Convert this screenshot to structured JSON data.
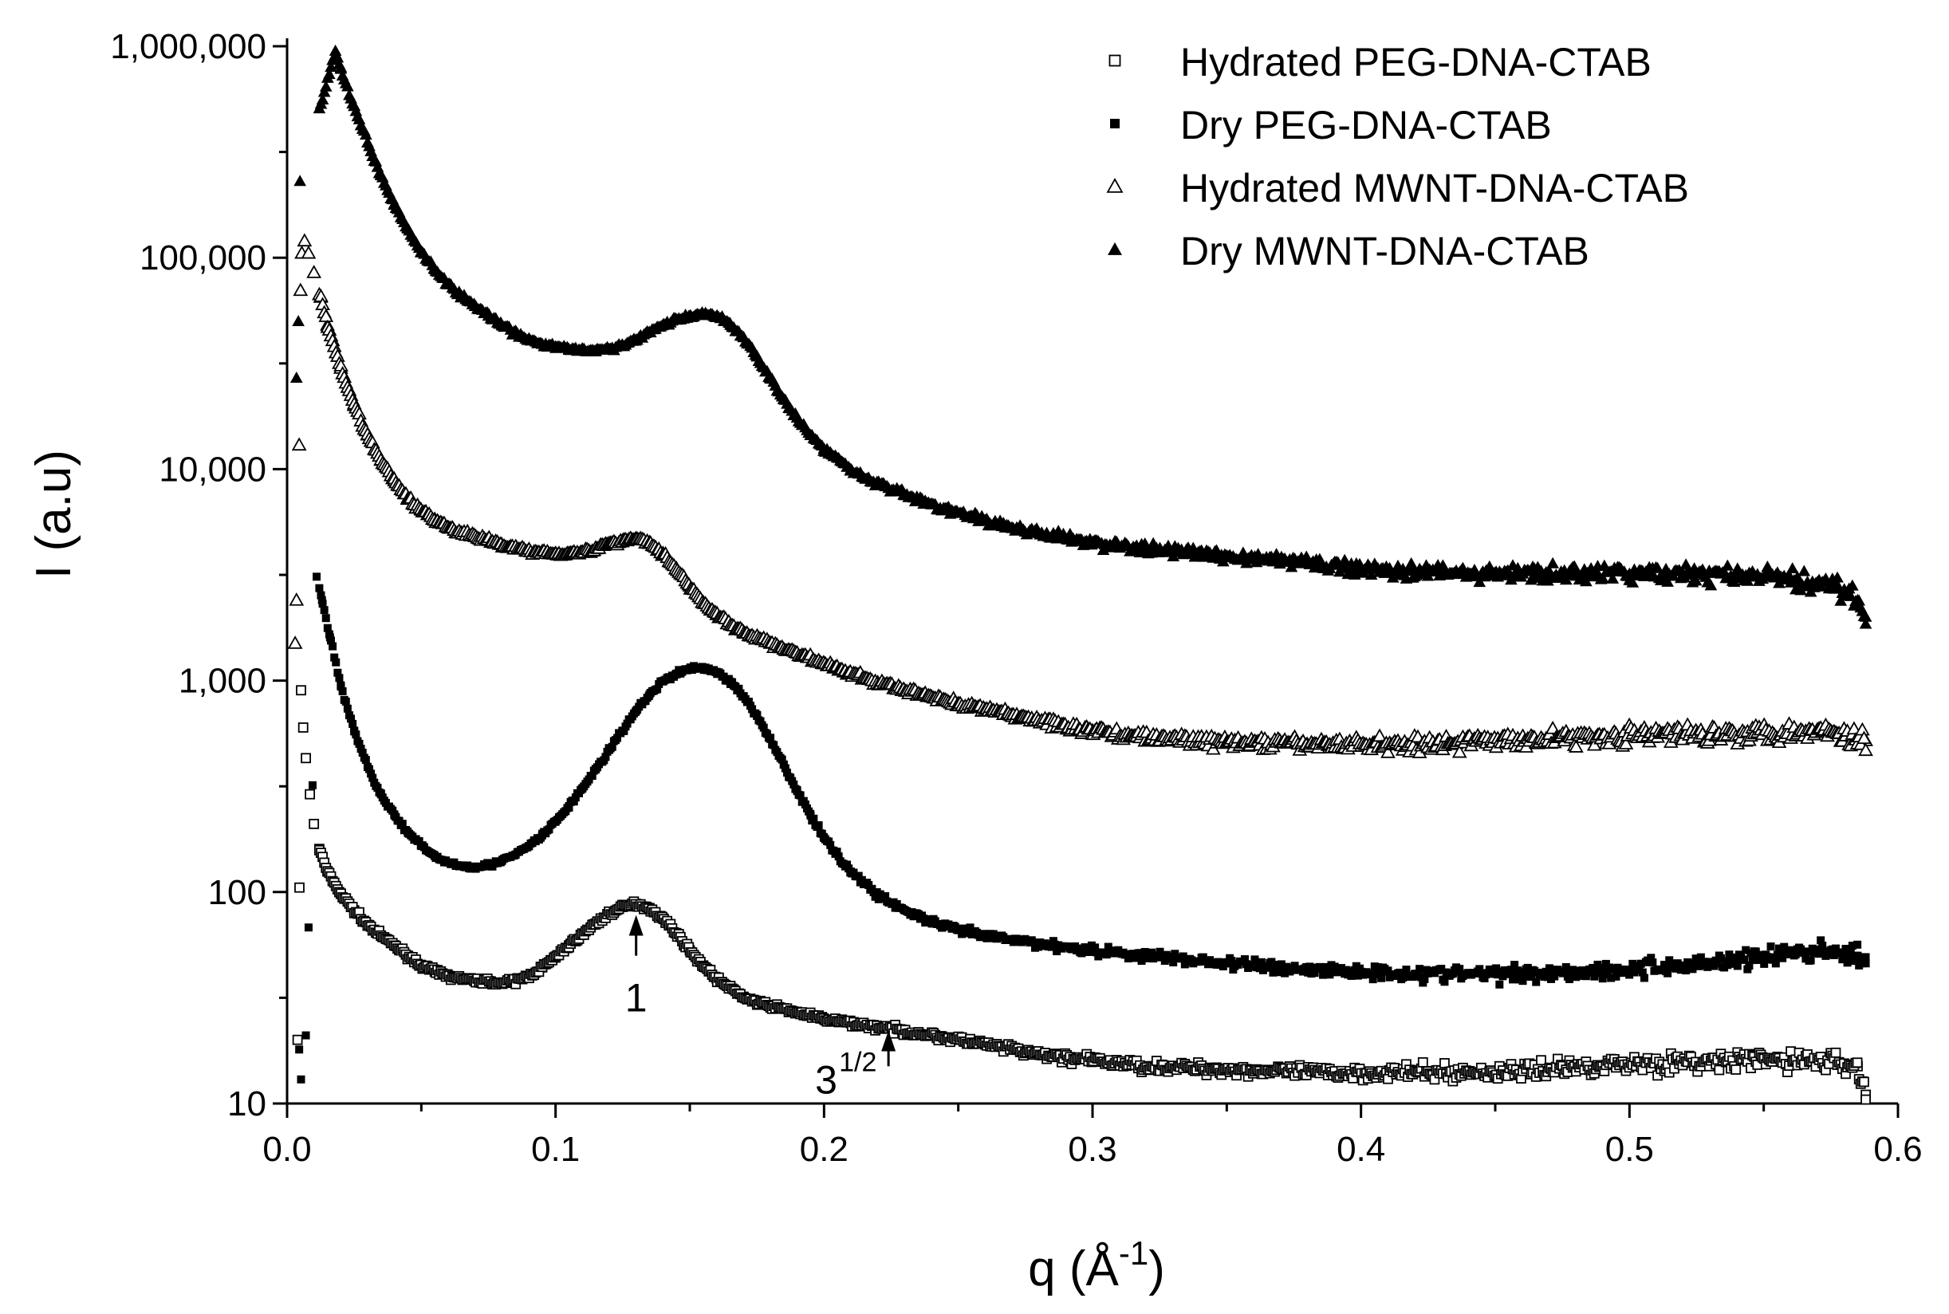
{
  "chart_data": {
    "type": "scatter",
    "title": "",
    "xlabel": "q (Å⁻¹)",
    "xlabel_parts": {
      "main": "q (Å",
      "sup": "-1",
      "close": ")"
    },
    "ylabel": "I (a.u)",
    "xscale": "linear",
    "yscale": "log",
    "xlim": [
      0.0,
      0.6
    ],
    "ylim": [
      10,
      1000000
    ],
    "x_ticks": [
      0.0,
      0.1,
      0.2,
      0.3,
      0.4,
      0.5,
      0.6
    ],
    "x_tick_labels": [
      "0.0",
      "0.1",
      "0.2",
      "0.3",
      "0.4",
      "0.5",
      "0.6"
    ],
    "y_ticks": [
      10,
      100,
      1000,
      10000,
      100000,
      1000000
    ],
    "y_tick_labels": [
      "10",
      "100",
      "1,000",
      "10,000",
      "100,000",
      "1,000,000"
    ],
    "grid": false,
    "legend_position": "top-right",
    "series": [
      {
        "name": "Hydrated PEG-DNA-CTAB",
        "marker": "square-open",
        "points": [
          [
            0.0039,
            20
          ],
          [
            0.0046,
            105
          ],
          [
            0.0052,
            900
          ],
          [
            0.006,
            600
          ],
          [
            0.007,
            430
          ],
          [
            0.0085,
            290
          ],
          [
            0.01,
            210
          ],
          [
            0.012,
            160
          ],
          [
            0.015,
            125
          ],
          [
            0.02,
            98
          ],
          [
            0.025,
            82
          ],
          [
            0.03,
            70
          ],
          [
            0.035,
            62
          ],
          [
            0.04,
            56
          ],
          [
            0.045,
            50
          ],
          [
            0.05,
            45
          ],
          [
            0.055,
            42
          ],
          [
            0.06,
            40
          ],
          [
            0.065,
            39
          ],
          [
            0.07,
            38
          ],
          [
            0.075,
            38
          ],
          [
            0.08,
            37
          ],
          [
            0.085,
            38
          ],
          [
            0.09,
            40
          ],
          [
            0.095,
            44
          ],
          [
            0.1,
            49
          ],
          [
            0.105,
            56
          ],
          [
            0.11,
            63
          ],
          [
            0.115,
            71
          ],
          [
            0.12,
            79
          ],
          [
            0.125,
            85
          ],
          [
            0.13,
            88
          ],
          [
            0.135,
            84
          ],
          [
            0.14,
            75
          ],
          [
            0.145,
            64
          ],
          [
            0.15,
            53
          ],
          [
            0.155,
            45
          ],
          [
            0.16,
            39
          ],
          [
            0.165,
            35
          ],
          [
            0.17,
            32
          ],
          [
            0.175,
            30
          ],
          [
            0.18,
            29
          ],
          [
            0.19,
            27
          ],
          [
            0.2,
            25
          ],
          [
            0.21,
            24
          ],
          [
            0.22,
            23
          ],
          [
            0.23,
            22
          ],
          [
            0.24,
            21
          ],
          [
            0.25,
            20
          ],
          [
            0.26,
            19
          ],
          [
            0.27,
            18
          ],
          [
            0.28,
            17
          ],
          [
            0.3,
            16
          ],
          [
            0.32,
            15
          ],
          [
            0.35,
            14.5
          ],
          [
            0.38,
            14
          ],
          [
            0.4,
            14
          ],
          [
            0.45,
            14
          ],
          [
            0.5,
            15.5
          ],
          [
            0.52,
            15.5
          ],
          [
            0.55,
            16
          ],
          [
            0.57,
            16
          ],
          [
            0.585,
            15
          ],
          [
            0.588,
            11
          ]
        ]
      },
      {
        "name": "Dry PEG-DNA-CTAB",
        "marker": "square-filled",
        "points": [
          [
            0.0045,
            18
          ],
          [
            0.0052,
            13
          ],
          [
            0.007,
            21
          ],
          [
            0.008,
            68
          ],
          [
            0.0095,
            320
          ],
          [
            0.011,
            3100
          ],
          [
            0.013,
            2400
          ],
          [
            0.016,
            1600
          ],
          [
            0.02,
            950
          ],
          [
            0.025,
            580
          ],
          [
            0.03,
            390
          ],
          [
            0.035,
            290
          ],
          [
            0.04,
            230
          ],
          [
            0.045,
            190
          ],
          [
            0.05,
            165
          ],
          [
            0.055,
            148
          ],
          [
            0.06,
            138
          ],
          [
            0.065,
            133
          ],
          [
            0.07,
            132
          ],
          [
            0.075,
            134
          ],
          [
            0.08,
            140
          ],
          [
            0.085,
            150
          ],
          [
            0.09,
            165
          ],
          [
            0.095,
            185
          ],
          [
            0.1,
            215
          ],
          [
            0.105,
            255
          ],
          [
            0.11,
            310
          ],
          [
            0.115,
            380
          ],
          [
            0.12,
            470
          ],
          [
            0.125,
            580
          ],
          [
            0.13,
            720
          ],
          [
            0.135,
            860
          ],
          [
            0.14,
            990
          ],
          [
            0.145,
            1080
          ],
          [
            0.15,
            1140
          ],
          [
            0.155,
            1150
          ],
          [
            0.16,
            1100
          ],
          [
            0.165,
            990
          ],
          [
            0.17,
            840
          ],
          [
            0.175,
            680
          ],
          [
            0.18,
            530
          ],
          [
            0.185,
            400
          ],
          [
            0.19,
            300
          ],
          [
            0.195,
            230
          ],
          [
            0.2,
            180
          ],
          [
            0.21,
            125
          ],
          [
            0.22,
            97
          ],
          [
            0.23,
            82
          ],
          [
            0.24,
            72
          ],
          [
            0.25,
            66
          ],
          [
            0.26,
            62
          ],
          [
            0.28,
            57
          ],
          [
            0.3,
            53
          ],
          [
            0.32,
            50
          ],
          [
            0.35,
            46
          ],
          [
            0.38,
            43
          ],
          [
            0.4,
            42
          ],
          [
            0.42,
            41
          ],
          [
            0.45,
            41
          ],
          [
            0.48,
            42
          ],
          [
            0.5,
            43
          ],
          [
            0.52,
            45
          ],
          [
            0.54,
            48
          ],
          [
            0.56,
            51
          ],
          [
            0.575,
            53
          ],
          [
            0.585,
            50
          ],
          [
            0.588,
            46
          ]
        ]
      },
      {
        "name": "Hydrated MWNT-DNA-CTAB",
        "marker": "triangle-open",
        "points": [
          [
            0.003,
            1500
          ],
          [
            0.0035,
            2400
          ],
          [
            0.0045,
            13000
          ],
          [
            0.005,
            70000
          ],
          [
            0.0055,
            105000
          ],
          [
            0.0065,
            120000
          ],
          [
            0.008,
            105000
          ],
          [
            0.01,
            85000
          ],
          [
            0.0125,
            65000
          ],
          [
            0.015,
            48000
          ],
          [
            0.02,
            30000
          ],
          [
            0.025,
            20000
          ],
          [
            0.03,
            14500
          ],
          [
            0.035,
            11000
          ],
          [
            0.04,
            8800
          ],
          [
            0.045,
            7300
          ],
          [
            0.05,
            6400
          ],
          [
            0.055,
            5800
          ],
          [
            0.06,
            5300
          ],
          [
            0.065,
            5000
          ],
          [
            0.07,
            4800
          ],
          [
            0.075,
            4600
          ],
          [
            0.08,
            4400
          ],
          [
            0.085,
            4250
          ],
          [
            0.09,
            4100
          ],
          [
            0.095,
            4050
          ],
          [
            0.1,
            4000
          ],
          [
            0.105,
            4000
          ],
          [
            0.11,
            4050
          ],
          [
            0.115,
            4200
          ],
          [
            0.12,
            4450
          ],
          [
            0.125,
            4600
          ],
          [
            0.13,
            4700
          ],
          [
            0.135,
            4500
          ],
          [
            0.14,
            4000
          ],
          [
            0.145,
            3400
          ],
          [
            0.15,
            2800
          ],
          [
            0.155,
            2350
          ],
          [
            0.16,
            2050
          ],
          [
            0.165,
            1850
          ],
          [
            0.17,
            1700
          ],
          [
            0.18,
            1500
          ],
          [
            0.19,
            1350
          ],
          [
            0.2,
            1200
          ],
          [
            0.21,
            1080
          ],
          [
            0.22,
            980
          ],
          [
            0.23,
            900
          ],
          [
            0.24,
            840
          ],
          [
            0.25,
            780
          ],
          [
            0.26,
            730
          ],
          [
            0.27,
            690
          ],
          [
            0.28,
            650
          ],
          [
            0.29,
            610
          ],
          [
            0.3,
            580
          ],
          [
            0.32,
            540
          ],
          [
            0.35,
            510
          ],
          [
            0.38,
            500
          ],
          [
            0.4,
            500
          ],
          [
            0.42,
            500
          ],
          [
            0.45,
            520
          ],
          [
            0.48,
            540
          ],
          [
            0.5,
            550
          ],
          [
            0.52,
            560
          ],
          [
            0.55,
            570
          ],
          [
            0.57,
            580
          ],
          [
            0.58,
            560
          ],
          [
            0.588,
            520
          ]
        ]
      },
      {
        "name": "Dry MWNT-DNA-CTAB",
        "marker": "triangle-filled",
        "points": [
          [
            0.0035,
            27000
          ],
          [
            0.0042,
            50000
          ],
          [
            0.0048,
            230000
          ],
          [
            0.018,
            950000
          ],
          [
            0.02,
            780000
          ],
          [
            0.025,
            520000
          ],
          [
            0.03,
            350000
          ],
          [
            0.035,
            245000
          ],
          [
            0.04,
            180000
          ],
          [
            0.045,
            137000
          ],
          [
            0.05,
            107000
          ],
          [
            0.055,
            88000
          ],
          [
            0.06,
            75000
          ],
          [
            0.065,
            66000
          ],
          [
            0.07,
            59000
          ],
          [
            0.075,
            53000
          ],
          [
            0.08,
            48000
          ],
          [
            0.085,
            44000
          ],
          [
            0.09,
            41000
          ],
          [
            0.095,
            39000
          ],
          [
            0.1,
            38000
          ],
          [
            0.105,
            37000
          ],
          [
            0.11,
            36500
          ],
          [
            0.115,
            36500
          ],
          [
            0.12,
            37000
          ],
          [
            0.125,
            38500
          ],
          [
            0.13,
            41000
          ],
          [
            0.135,
            44500
          ],
          [
            0.14,
            48000
          ],
          [
            0.145,
            51000
          ],
          [
            0.15,
            53000
          ],
          [
            0.155,
            54000
          ],
          [
            0.16,
            53000
          ],
          [
            0.165,
            49000
          ],
          [
            0.17,
            42000
          ],
          [
            0.175,
            34000
          ],
          [
            0.18,
            27000
          ],
          [
            0.185,
            21500
          ],
          [
            0.19,
            17500
          ],
          [
            0.195,
            14500
          ],
          [
            0.2,
            12500
          ],
          [
            0.21,
            10000
          ],
          [
            0.22,
            8600
          ],
          [
            0.23,
            7600
          ],
          [
            0.24,
            6800
          ],
          [
            0.25,
            6200
          ],
          [
            0.26,
            5700
          ],
          [
            0.27,
            5300
          ],
          [
            0.28,
            5000
          ],
          [
            0.29,
            4700
          ],
          [
            0.3,
            4500
          ],
          [
            0.32,
            4200
          ],
          [
            0.35,
            3900
          ],
          [
            0.38,
            3600
          ],
          [
            0.4,
            3400
          ],
          [
            0.42,
            3300
          ],
          [
            0.45,
            3200
          ],
          [
            0.48,
            3200
          ],
          [
            0.5,
            3200
          ],
          [
            0.52,
            3200
          ],
          [
            0.55,
            3100
          ],
          [
            0.57,
            2900
          ],
          [
            0.58,
            2700
          ],
          [
            0.585,
            2400
          ],
          [
            0.588,
            2000
          ]
        ]
      }
    ],
    "annotations": [
      {
        "label": "1",
        "x": 0.13,
        "y_arrow_tip": 88,
        "y_arrow_base": 50
      },
      {
        "label": "3",
        "label_sup": "1/2",
        "x": 0.224,
        "y_arrow_tip": 25,
        "y_arrow_base": 15
      }
    ]
  }
}
